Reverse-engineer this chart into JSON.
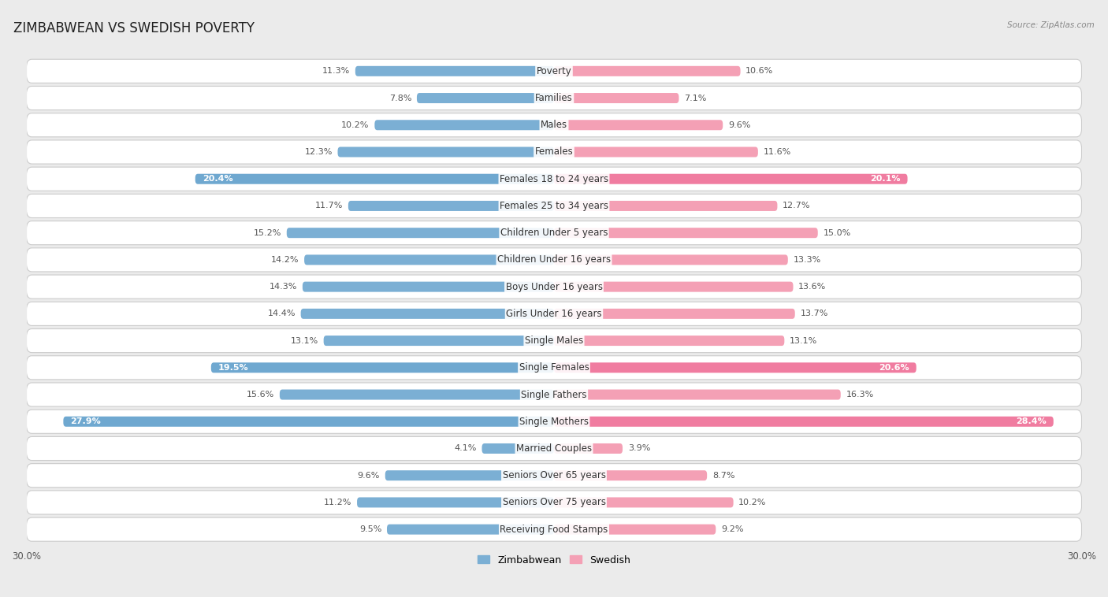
{
  "title": "ZIMBABWEAN VS SWEDISH POVERTY",
  "source": "Source: ZipAtlas.com",
  "categories": [
    "Poverty",
    "Families",
    "Males",
    "Females",
    "Females 18 to 24 years",
    "Females 25 to 34 years",
    "Children Under 5 years",
    "Children Under 16 years",
    "Boys Under 16 years",
    "Girls Under 16 years",
    "Single Males",
    "Single Females",
    "Single Fathers",
    "Single Mothers",
    "Married Couples",
    "Seniors Over 65 years",
    "Seniors Over 75 years",
    "Receiving Food Stamps"
  ],
  "zimbabwean": [
    11.3,
    7.8,
    10.2,
    12.3,
    20.4,
    11.7,
    15.2,
    14.2,
    14.3,
    14.4,
    13.1,
    19.5,
    15.6,
    27.9,
    4.1,
    9.6,
    11.2,
    9.5
  ],
  "swedish": [
    10.6,
    7.1,
    9.6,
    11.6,
    20.1,
    12.7,
    15.0,
    13.3,
    13.6,
    13.7,
    13.1,
    20.6,
    16.3,
    28.4,
    3.9,
    8.7,
    10.2,
    9.2
  ],
  "highlight_indices": [
    4,
    11,
    13
  ],
  "zim_color_normal": "#7bafd4",
  "swe_color_normal": "#f4a0b5",
  "zim_color_highlight": "#6fa8d0",
  "swe_color_highlight": "#f07ca0",
  "bg_color": "#ebebeb",
  "row_bg": "#ffffff",
  "row_border": "#cccccc",
  "bar_height": 0.38,
  "xlim": 30.0,
  "title_fontsize": 12,
  "label_fontsize": 8.5,
  "value_fontsize": 8.0,
  "axis_tick_fontsize": 8.5
}
